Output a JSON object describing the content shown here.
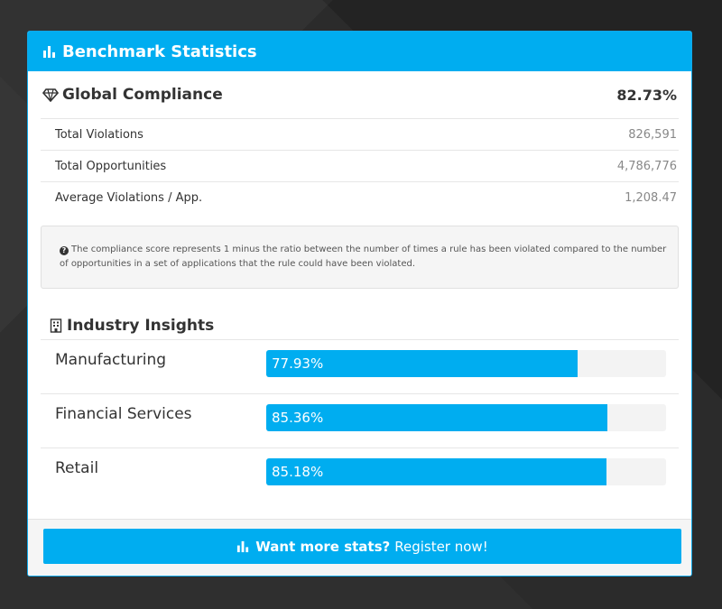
{
  "panel": {
    "title": "Benchmark Statistics",
    "title_icon": "bar-chart-icon"
  },
  "compliance": {
    "title": "Global Compliance",
    "title_icon": "diamond-icon",
    "score": "82.73%",
    "stats": [
      {
        "label": "Total Violations",
        "value": "826,591"
      },
      {
        "label": "Total Opportunities",
        "value": "4,786,776"
      },
      {
        "label": "Average Violations / App.",
        "value": "1,208.47"
      }
    ],
    "note_icon": "question-circle-icon",
    "note": "The compliance score represents 1 minus the ratio between the number of times a rule has been violated compared to the number of opportunities in a set of applications that the rule could have been violated."
  },
  "industry": {
    "title": "Industry Insights",
    "title_icon": "building-icon",
    "items": [
      {
        "name": "Manufacturing",
        "label": "77.93%",
        "percent": 77.93
      },
      {
        "name": "Financial Services",
        "label": "85.36%",
        "percent": 85.36
      },
      {
        "name": "Retail",
        "label": "85.18%",
        "percent": 85.18
      }
    ]
  },
  "cta": {
    "icon": "bar-chart-icon",
    "bold": "Want more stats?",
    "text": "Register now!"
  },
  "colors": {
    "accent": "#00adf0",
    "track": "#f3f3f3"
  }
}
